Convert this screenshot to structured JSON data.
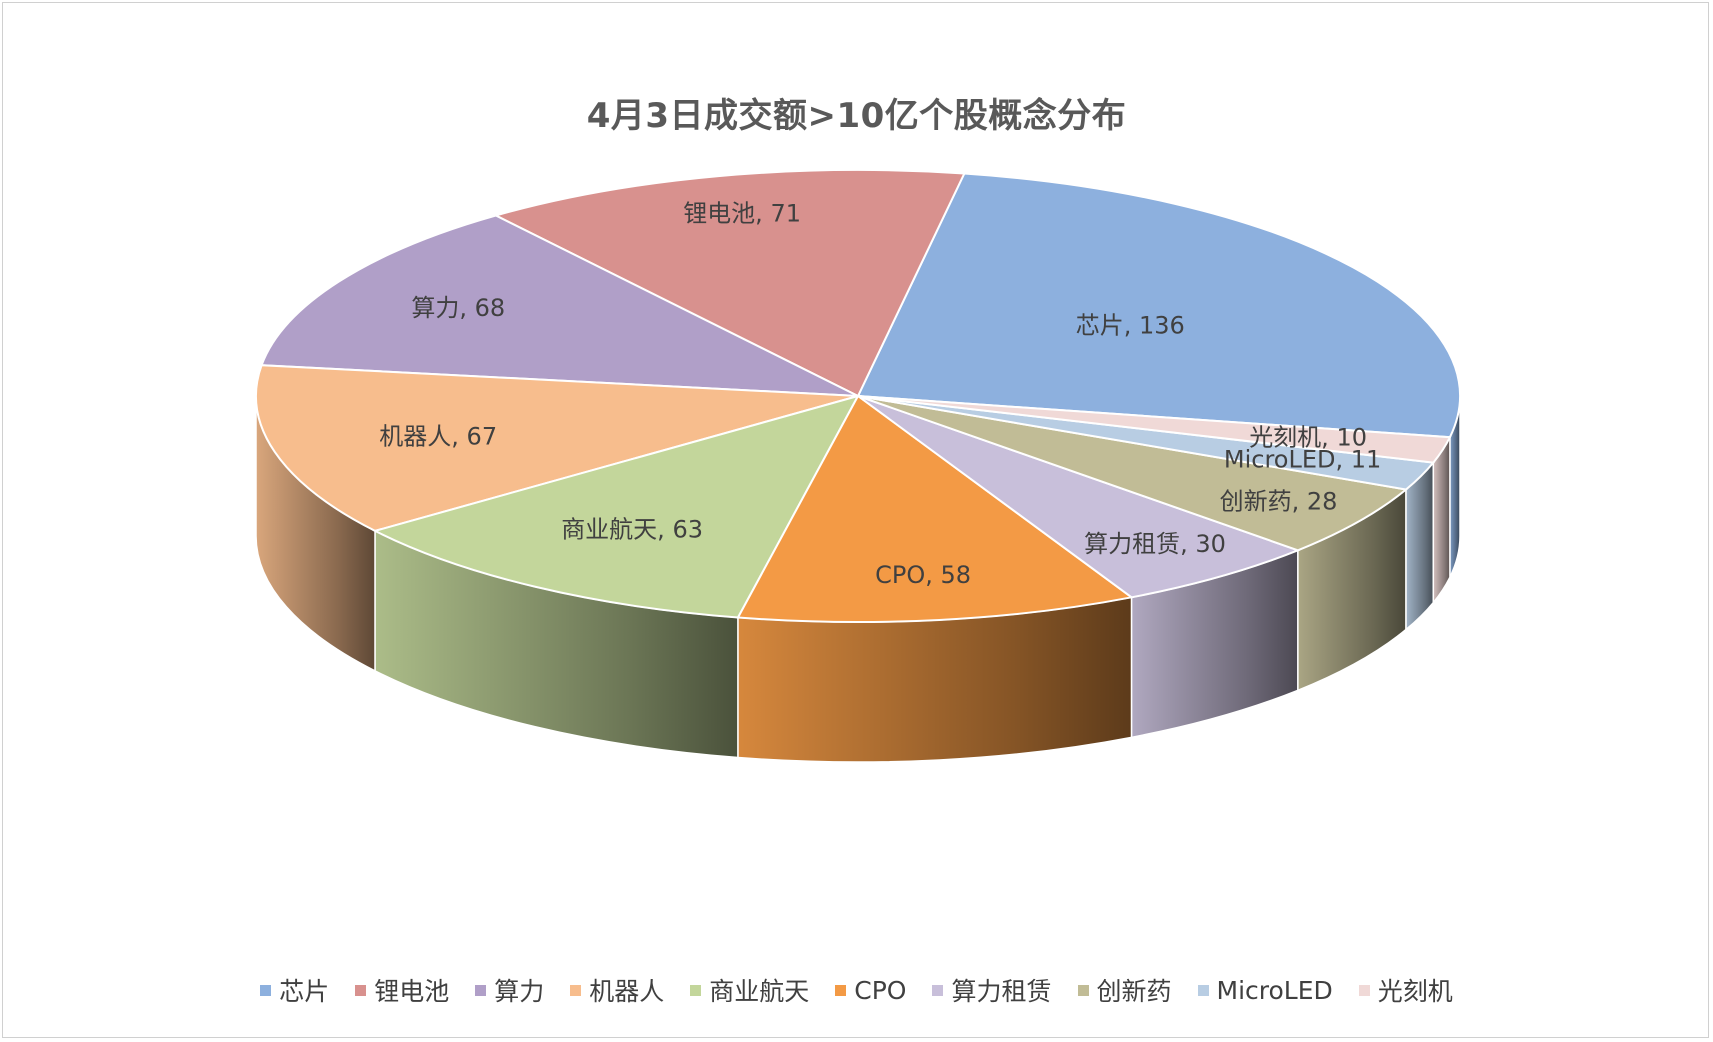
{
  "chart_data": {
    "type": "pie",
    "title": "4月3日成交额>10亿个股概念分布",
    "categories": [
      "芯片",
      "锂电池",
      "算力",
      "机器人",
      "商业航天",
      "CPO",
      "算力租赁",
      "创新药",
      "MicroLED",
      "光刻机"
    ],
    "values": [
      136,
      71,
      68,
      67,
      63,
      58,
      30,
      28,
      11,
      10
    ],
    "labels": [
      "芯片, 136",
      "锂电池, 71",
      "算力, 68",
      "机器人, 67",
      "商业航天, 63",
      "CPO, 58",
      "算力租赁, 30",
      "创新药, 28",
      "MicroLED, 11",
      "光刻机, 10"
    ],
    "colors": [
      "#8db0de",
      "#d8918e",
      "#b09fc8",
      "#f7bd8d",
      "#c3d69b",
      "#f39a45",
      "#c8bfda",
      "#c1bc96",
      "#b8cde3",
      "#f0d9d7"
    ],
    "legend_position": "bottom",
    "style": "3d"
  },
  "legend": {
    "items": [
      "芯片",
      "锂电池",
      "算力",
      "机器人",
      "商业航天",
      "CPO",
      "算力租赁",
      "创新药",
      "MicroLED",
      "光刻机"
    ]
  }
}
